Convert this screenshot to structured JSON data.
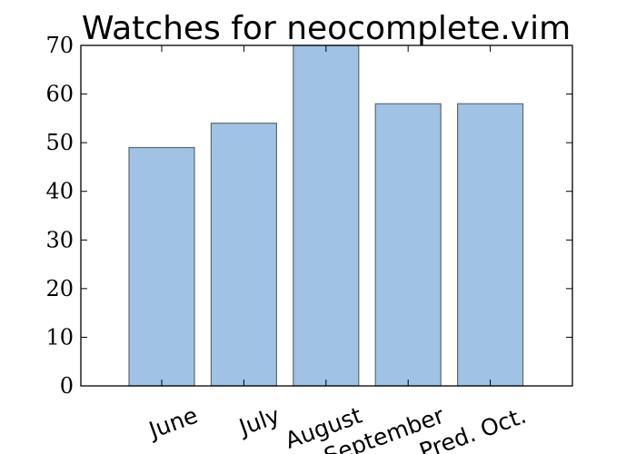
{
  "chart_data": {
    "type": "bar",
    "title": "Watches for neocomplete.vim",
    "xlabel": "",
    "ylabel": "",
    "categories": [
      "June",
      "July",
      "August",
      "September",
      "Pred. Oct."
    ],
    "values": [
      49,
      54,
      70,
      58,
      58
    ],
    "ylim": [
      0,
      70
    ],
    "yticks": [
      "0",
      "10",
      "20",
      "30",
      "40",
      "50",
      "60",
      "70"
    ],
    "bar_color": "#a0c2e4",
    "bar_edge_color": "#5f6a6f",
    "grid": false,
    "legend": "none",
    "xtick_rotation_deg": -20
  }
}
